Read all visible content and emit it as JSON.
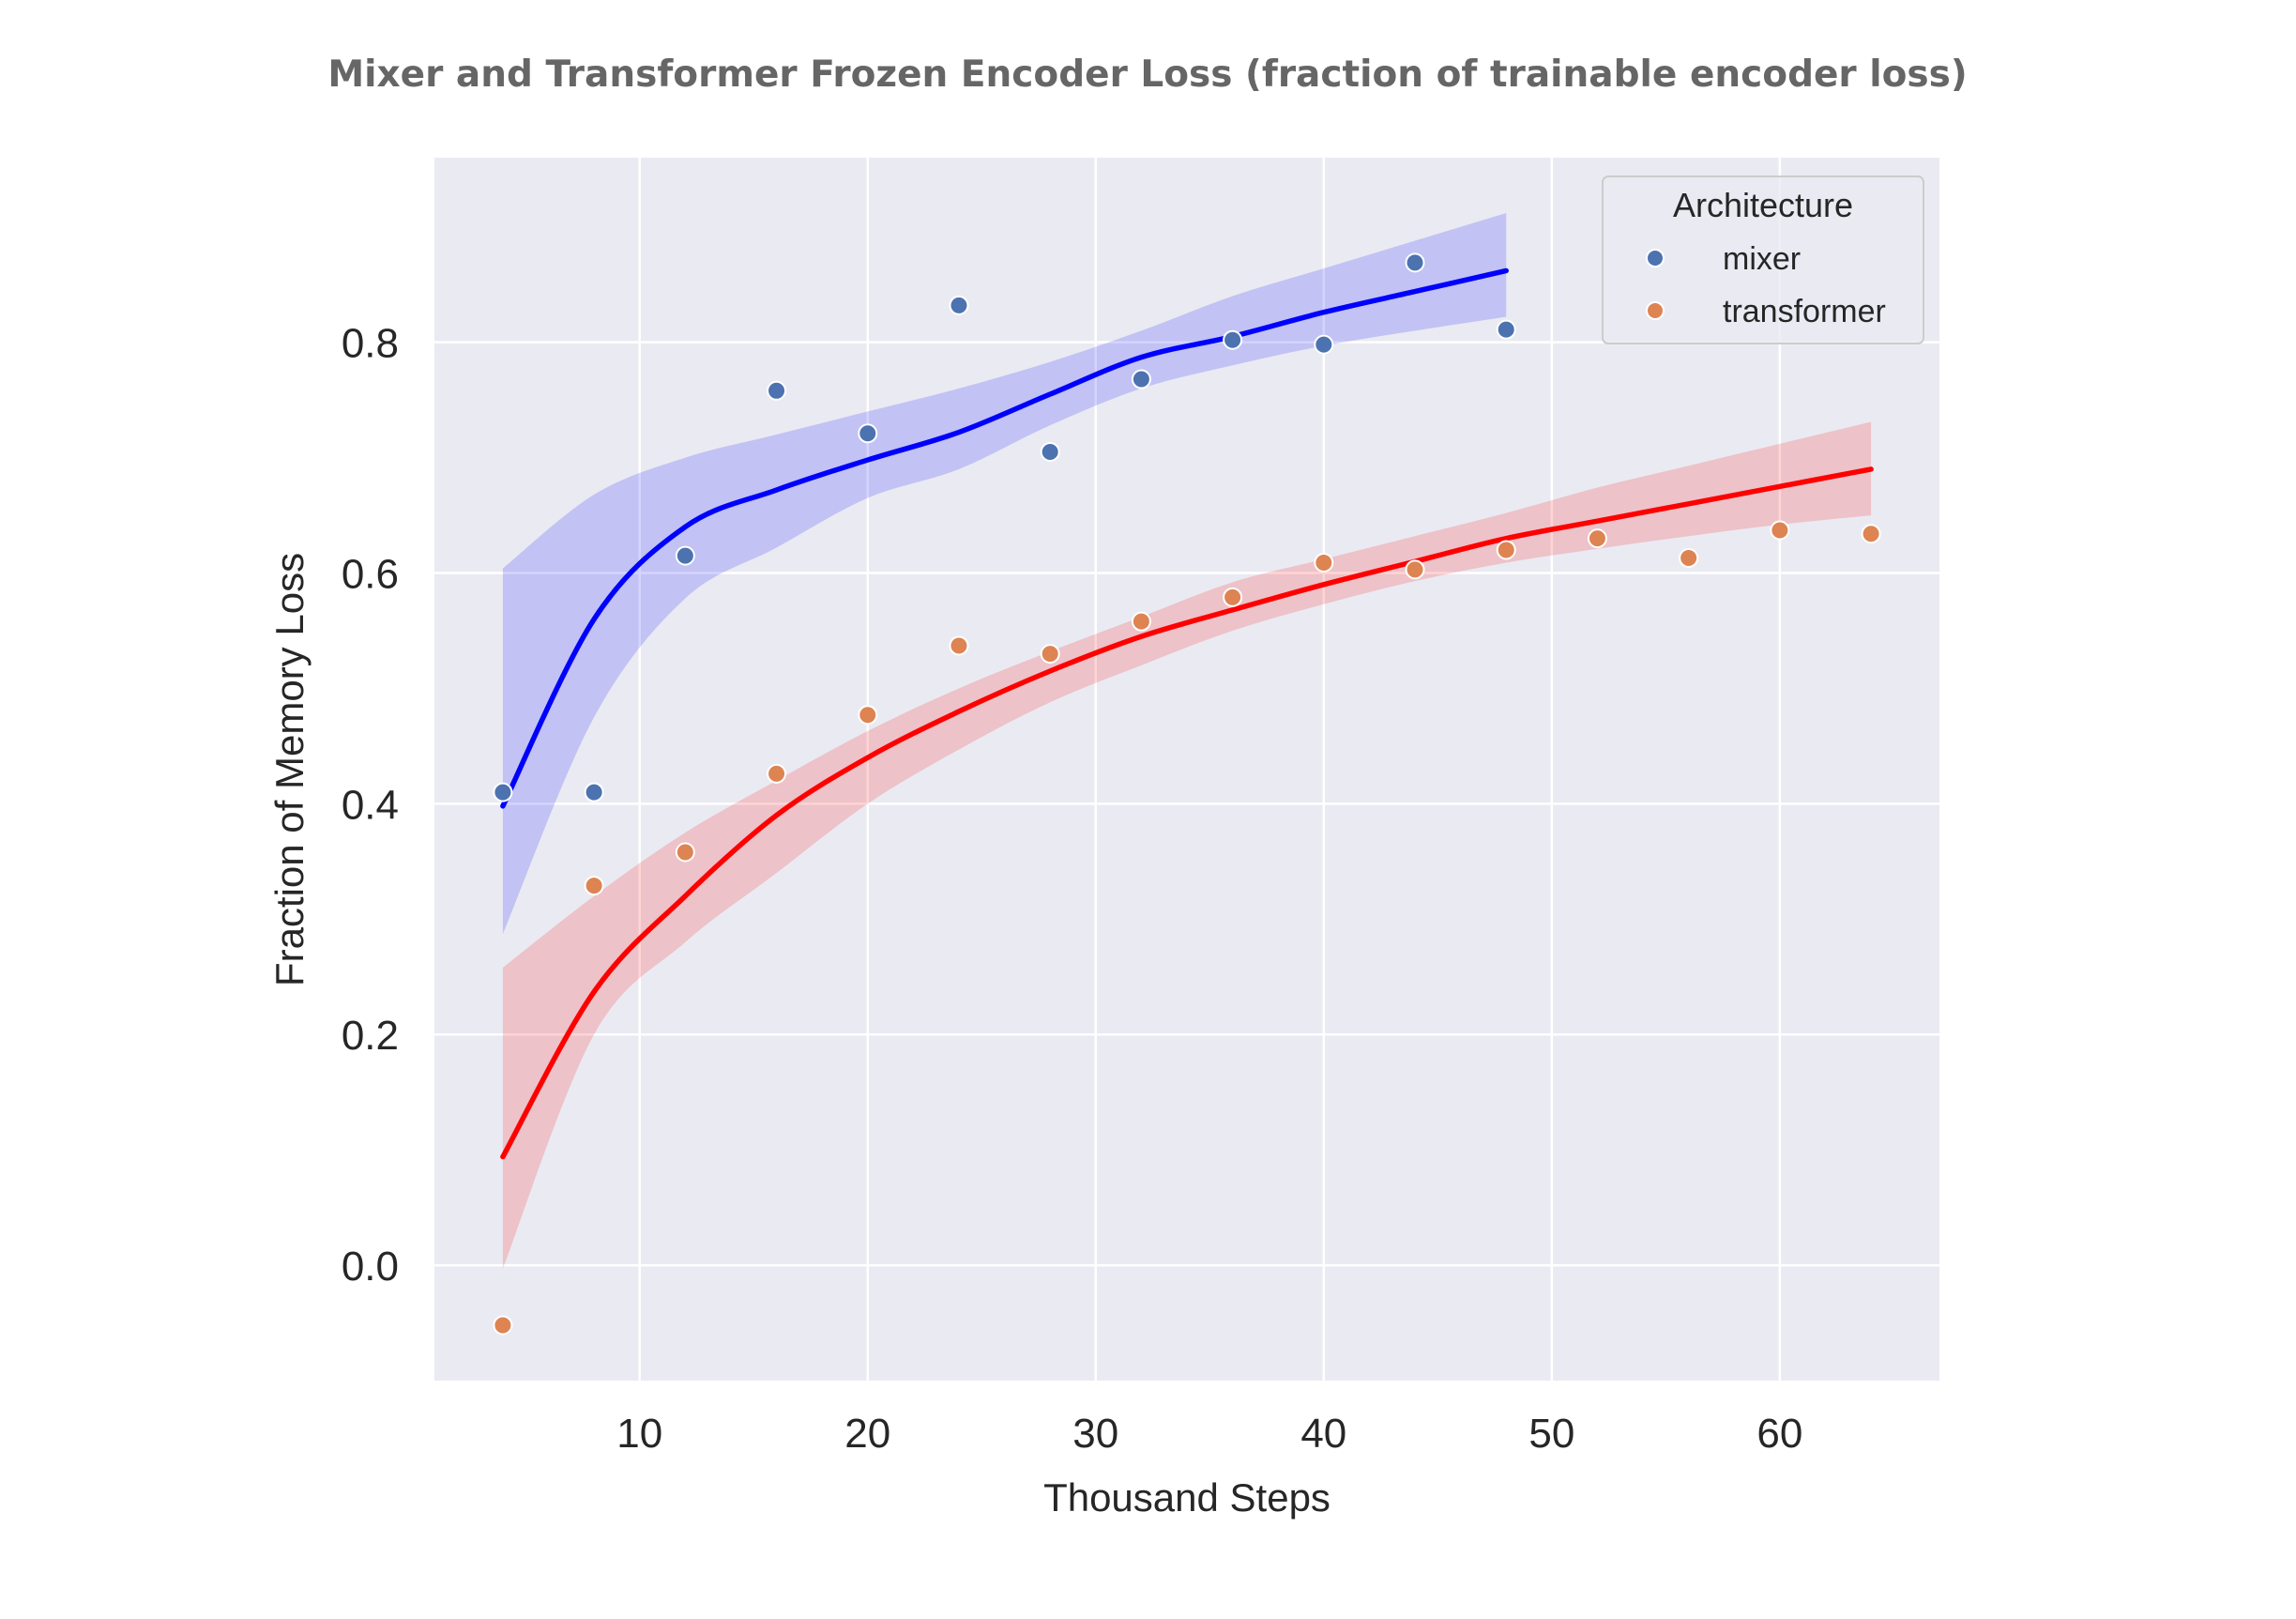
{
  "chart_data": {
    "type": "scatter",
    "title": "Mixer and Transformer Frozen Encoder Loss (fraction of trainable encoder loss)",
    "xlabel": "Thousand Steps",
    "ylabel": "Fraction of Memory Loss",
    "xlim": [
      1,
      67
    ],
    "ylim": [
      -0.1,
      0.96
    ],
    "xticks": [
      10,
      20,
      30,
      40,
      50,
      60
    ],
    "yticks": [
      0.0,
      0.2,
      0.4,
      0.6,
      0.8
    ],
    "xtick_labels": [
      "10",
      "20",
      "30",
      "40",
      "50",
      "60"
    ],
    "ytick_labels": [
      "0.0",
      "0.2",
      "0.4",
      "0.6",
      "0.8"
    ],
    "grid": true,
    "legend": {
      "title": "Architecture",
      "placement": "top-right",
      "entries": [
        {
          "label": "mixer",
          "color": "#4c72b0"
        },
        {
          "label": "transformer",
          "color": "#dd8452"
        }
      ]
    },
    "series": [
      {
        "name": "mixer",
        "kind": "scatter",
        "color": "#4c72b0",
        "x": [
          4,
          8,
          12,
          16,
          20,
          24,
          28,
          32,
          36,
          40,
          44,
          48
        ],
        "y": [
          0.41,
          0.41,
          0.615,
          0.758,
          0.721,
          0.832,
          0.705,
          0.768,
          0.802,
          0.798,
          0.869,
          0.811
        ]
      },
      {
        "name": "transformer",
        "kind": "scatter",
        "color": "#dd8452",
        "x": [
          4,
          8,
          12,
          16,
          20,
          24,
          28,
          32,
          36,
          40,
          44,
          48,
          52,
          56,
          60,
          64
        ],
        "y": [
          -0.052,
          0.329,
          0.358,
          0.426,
          0.477,
          0.537,
          0.53,
          0.558,
          0.579,
          0.609,
          0.603,
          0.62,
          0.63,
          0.613,
          0.637,
          0.634
        ]
      }
    ],
    "fits": [
      {
        "for": "mixer",
        "color": "#0000ff",
        "band_color": "#0000ff",
        "x": [
          4,
          8,
          12,
          16,
          20,
          24,
          28,
          32,
          36,
          40,
          44,
          48
        ],
        "y": [
          0.398,
          0.56,
          0.64,
          0.672,
          0.698,
          0.722,
          0.755,
          0.787,
          0.805,
          0.826,
          0.844,
          0.862
        ],
        "ci_low": [
          0.287,
          0.475,
          0.578,
          0.622,
          0.665,
          0.69,
          0.728,
          0.76,
          0.78,
          0.797,
          0.81,
          0.822
        ],
        "ci_high": [
          0.604,
          0.668,
          0.7,
          0.72,
          0.74,
          0.76,
          0.783,
          0.81,
          0.84,
          0.864,
          0.888,
          0.912
        ]
      },
      {
        "for": "transformer",
        "color": "#ff0000",
        "band_color": "#ff0000",
        "x": [
          4,
          8,
          12,
          16,
          20,
          24,
          28,
          32,
          36,
          40,
          44,
          48,
          52,
          56,
          60,
          64
        ],
        "y": [
          0.094,
          0.237,
          0.32,
          0.39,
          0.44,
          0.48,
          0.515,
          0.545,
          0.568,
          0.59,
          0.61,
          0.63,
          0.645,
          0.66,
          0.675,
          0.69
        ],
        "ci_low": [
          -0.003,
          0.2,
          0.28,
          0.34,
          0.4,
          0.447,
          0.488,
          0.52,
          0.55,
          0.573,
          0.593,
          0.609,
          0.621,
          0.632,
          0.642,
          0.65
        ],
        "ci_high": [
          0.258,
          0.32,
          0.375,
          0.42,
          0.463,
          0.5,
          0.532,
          0.562,
          0.592,
          0.612,
          0.632,
          0.652,
          0.674,
          0.693,
          0.712,
          0.731
        ]
      }
    ]
  }
}
